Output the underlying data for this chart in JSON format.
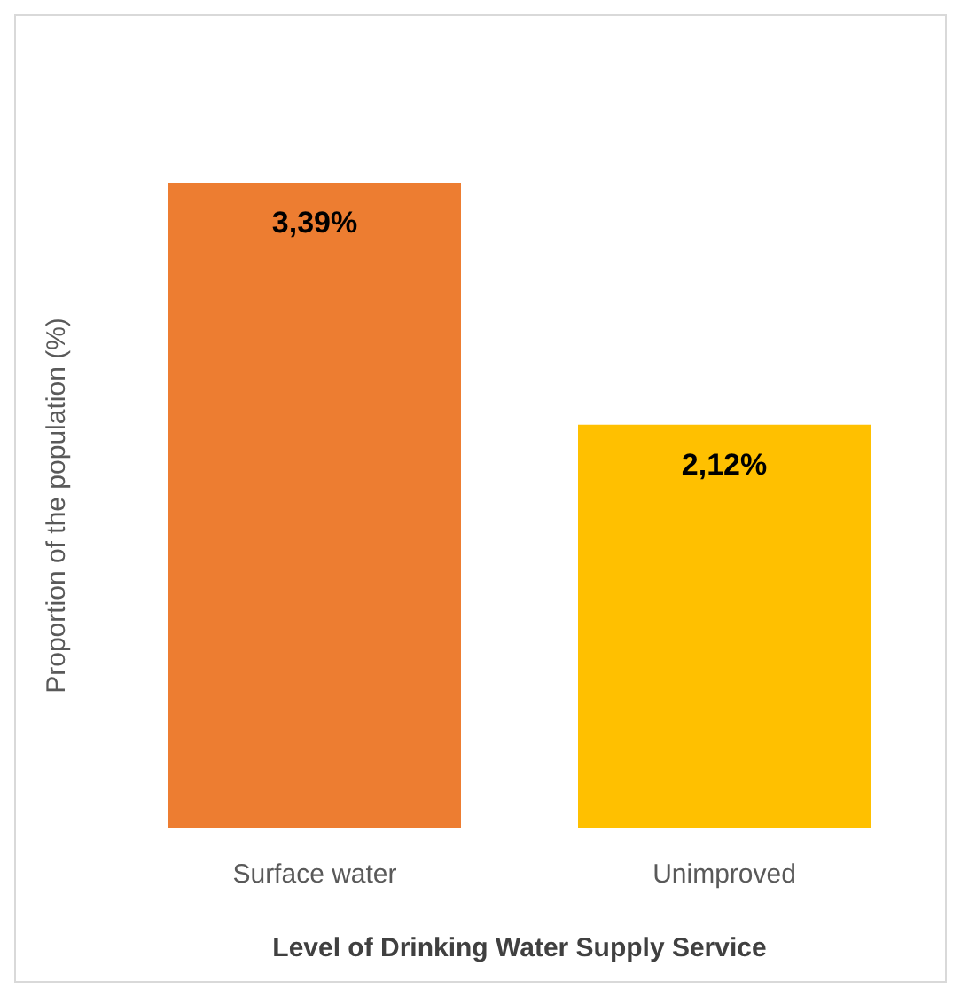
{
  "chart_data": {
    "type": "bar",
    "xlabel": "Level of Drinking Water Supply Service",
    "ylabel": "Proportion of the population (%)",
    "categories": [
      "Surface water",
      "Unimproved"
    ],
    "values": [
      3.39,
      2.12
    ],
    "colors": [
      "#ed7d31",
      "#ffc000"
    ],
    "value_labels": [
      "3,39%",
      "2,12%"
    ],
    "grid": false,
    "legend": false
  }
}
